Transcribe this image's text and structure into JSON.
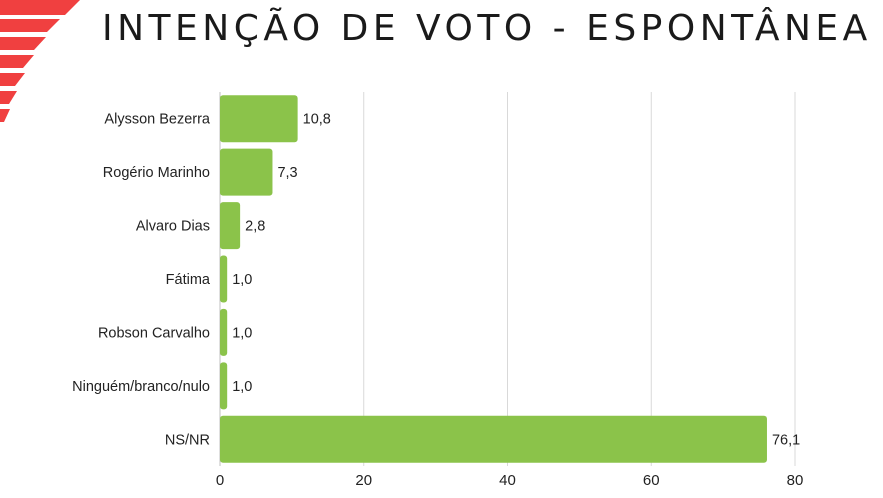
{
  "title": "INTENÇÃO DE VOTO - ESPONTÂNEA",
  "colors": {
    "bar": "#8bc34a",
    "grid": "#d9d9d9",
    "accent": "#f04040"
  },
  "chart_data": {
    "type": "bar",
    "orientation": "horizontal",
    "title": "INTENÇÃO DE VOTO - ESPONTÂNEA",
    "categories": [
      "Alysson Bezerra",
      "Rogério Marinho",
      "Alvaro Dias",
      "Fátima",
      "Robson Carvalho",
      "Ninguém/branco/nulo",
      "NS/NR"
    ],
    "values": [
      10.8,
      7.3,
      2.8,
      1.0,
      1.0,
      1.0,
      76.1
    ],
    "value_labels": [
      "10,8",
      "7,3",
      "2,8",
      "1,0",
      "1,0",
      "1,0",
      "76,1"
    ],
    "xlim": [
      0,
      80
    ],
    "xticks": [
      0,
      20,
      40,
      60,
      80
    ],
    "grid": true,
    "legend": "none"
  }
}
